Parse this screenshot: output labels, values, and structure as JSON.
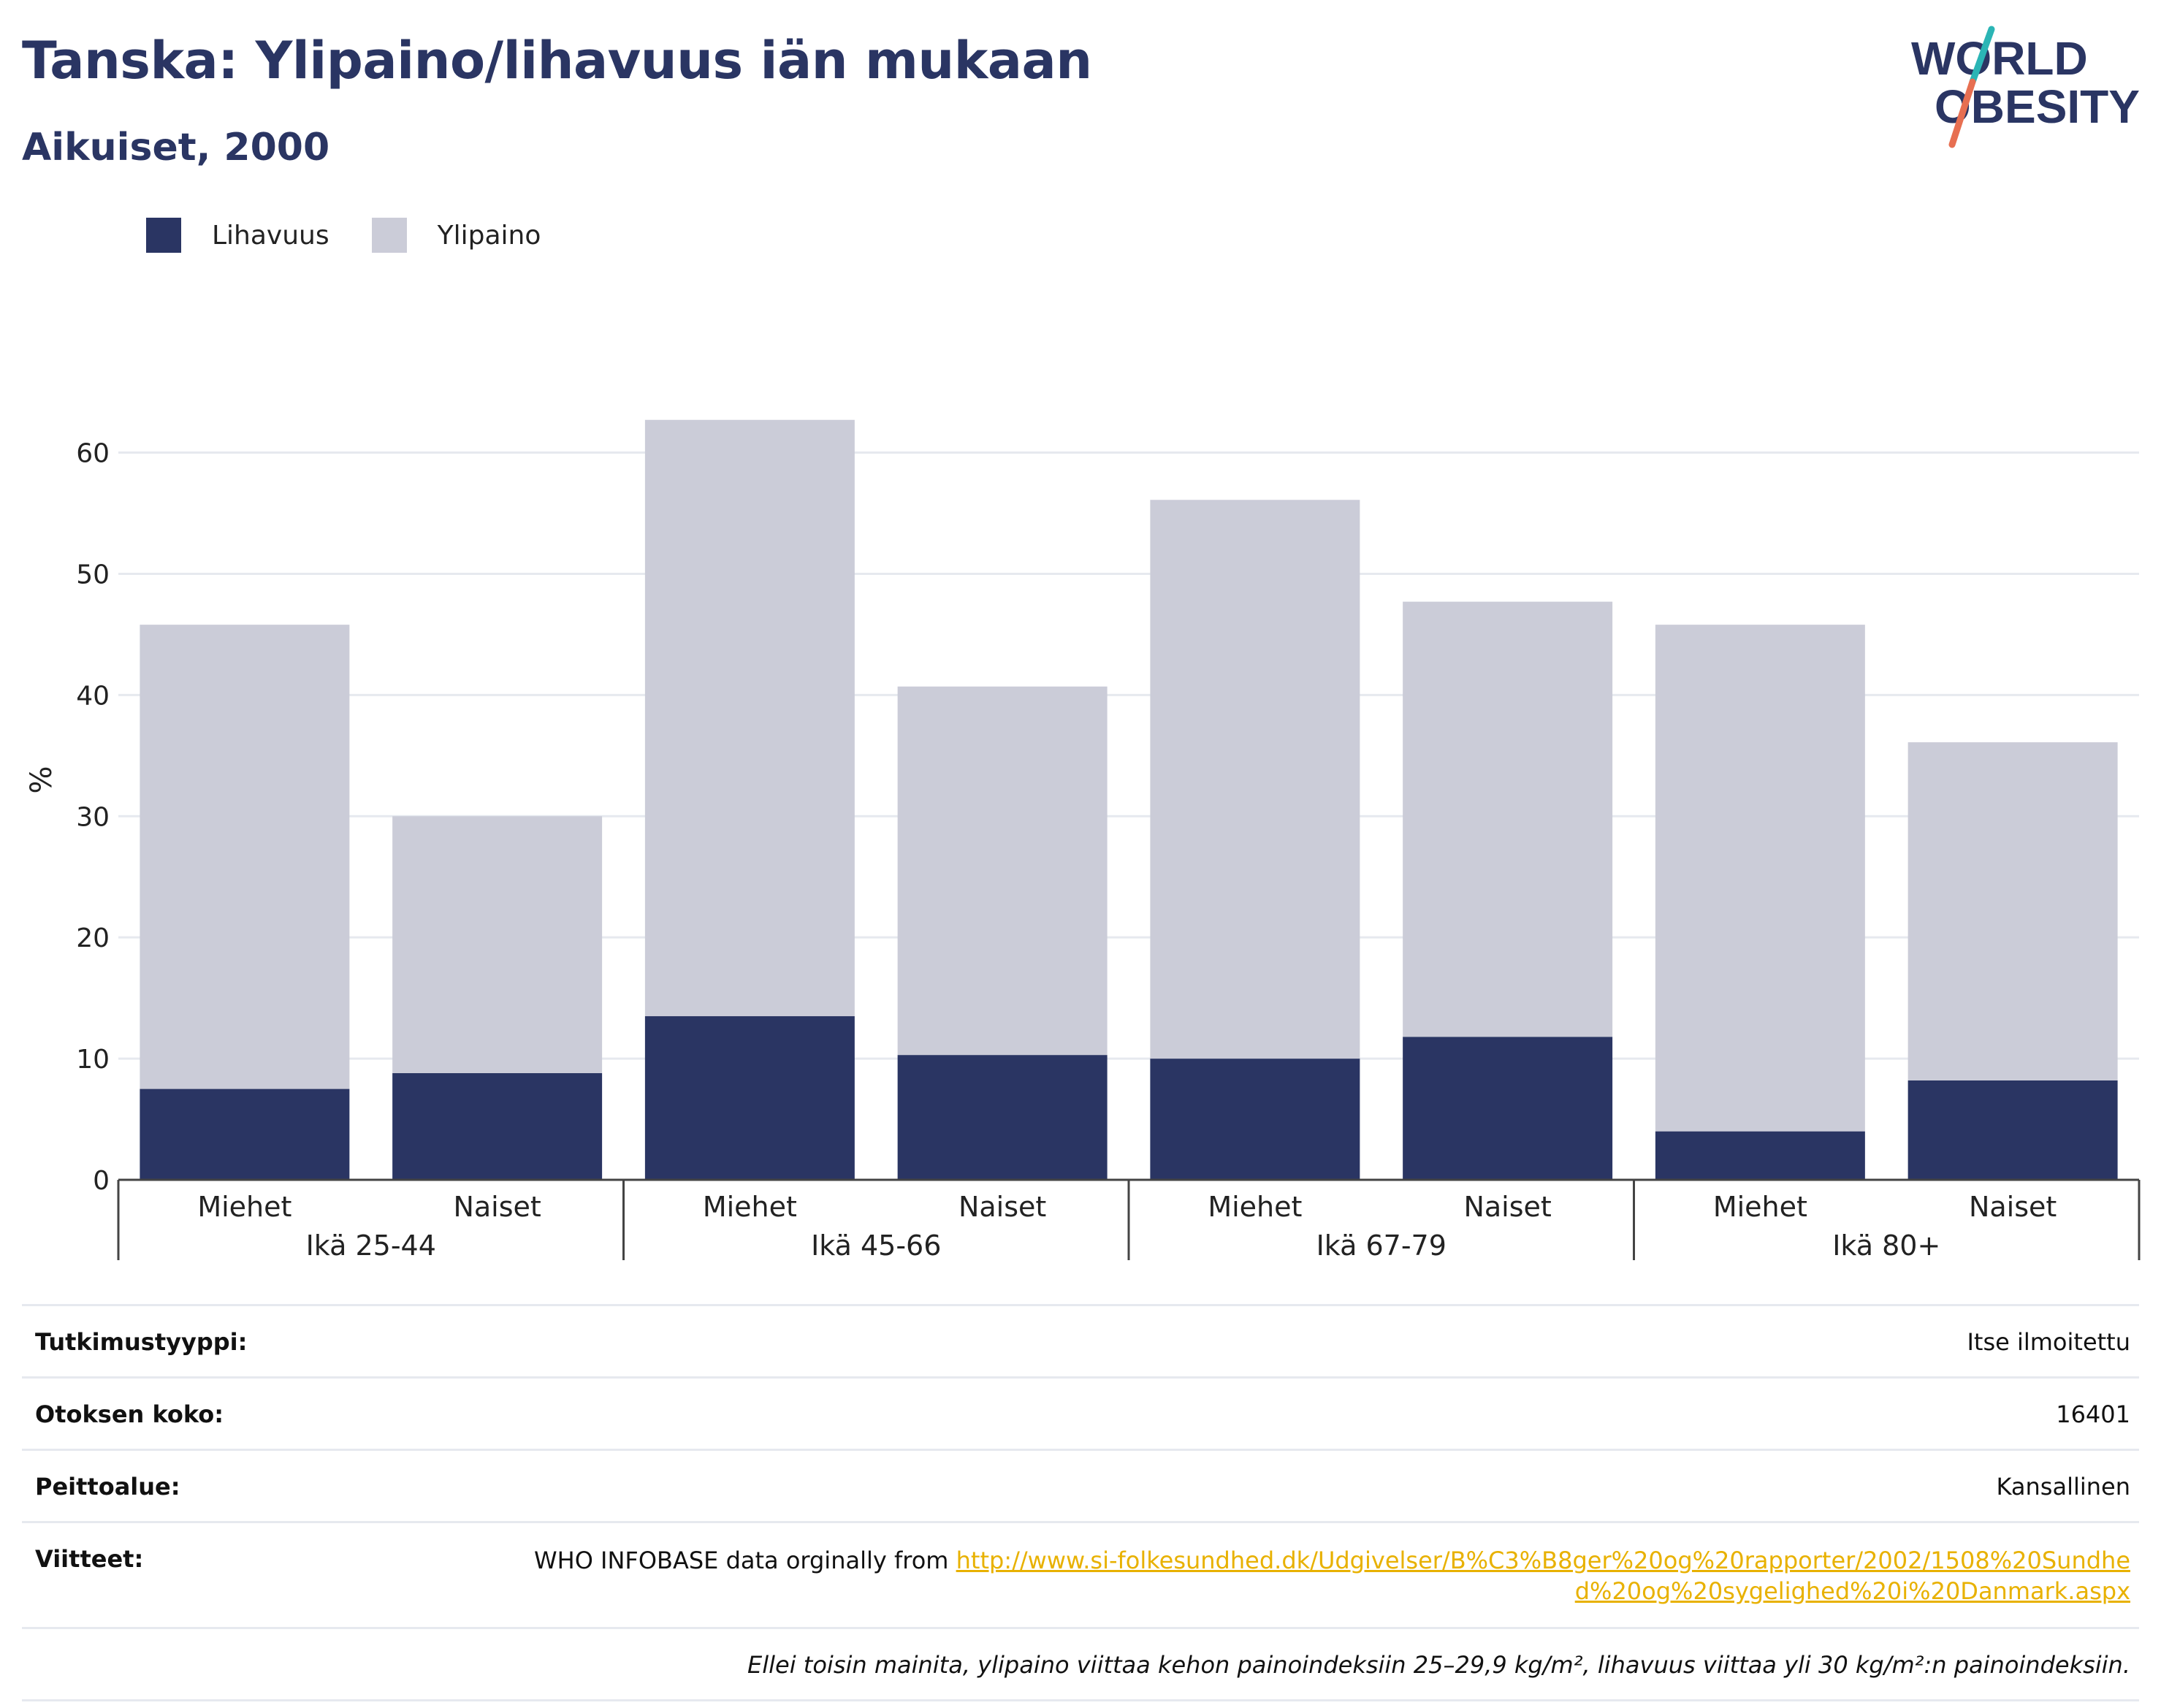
{
  "title": "Tanska: Ylipaino/lihavuus iän mukaan",
  "subtitle": "Aikuiset, 2000",
  "logo": {
    "line1": "WORLD",
    "line2": "OBESITY"
  },
  "colors": {
    "obesity": "#2a3563",
    "overweight": "#cbccd8",
    "text": "#2a3563",
    "link": "#e8b100",
    "grid": "#e6e9ef"
  },
  "chart_data": {
    "type": "bar",
    "stacked": true,
    "ylabel": "%",
    "ylim": [
      0,
      66
    ],
    "yticks": [
      0,
      10,
      20,
      30,
      40,
      50,
      60
    ],
    "legend": "top-left",
    "grid": true,
    "categories": [
      "Miehet",
      "Naiset",
      "Miehet",
      "Naiset",
      "Miehet",
      "Naiset",
      "Miehet",
      "Naiset"
    ],
    "groups": [
      "Ikä 25-44",
      "Ikä 45-66",
      "Ikä 67-79",
      "Ikä 80+"
    ],
    "series": [
      {
        "name": "Lihavuus",
        "values": [
          7.5,
          8.8,
          13.5,
          10.3,
          10.0,
          11.8,
          4.0,
          8.2
        ]
      },
      {
        "name": "Ylipaino",
        "values": [
          38.3,
          21.2,
          49.2,
          30.4,
          46.1,
          35.9,
          41.8,
          27.9
        ]
      }
    ]
  },
  "info": {
    "rows": [
      {
        "label": "Tutkimustyyppi:",
        "value": "Itse ilmoitettu"
      },
      {
        "label": "Otoksen koko:",
        "value": "16401"
      },
      {
        "label": "Peittoalue:",
        "value": "Kansallinen"
      }
    ],
    "references": {
      "label": "Viitteet:",
      "text": "WHO INFOBASE data orginally from ",
      "link": "http://www.si-folkesundhed.dk/Udgivelser/B%C3%B8ger%20og%20rapporter/2002/1508%20Sundhed%20og%20sygelighed%20i%20Danmark.aspx"
    },
    "note": "Ellei toisin mainita, ylipaino viittaa kehon painoindeksiin 25–29,9 kg/m², lihavuus viittaa yli 30 kg/m²:n painoindeksiin."
  }
}
